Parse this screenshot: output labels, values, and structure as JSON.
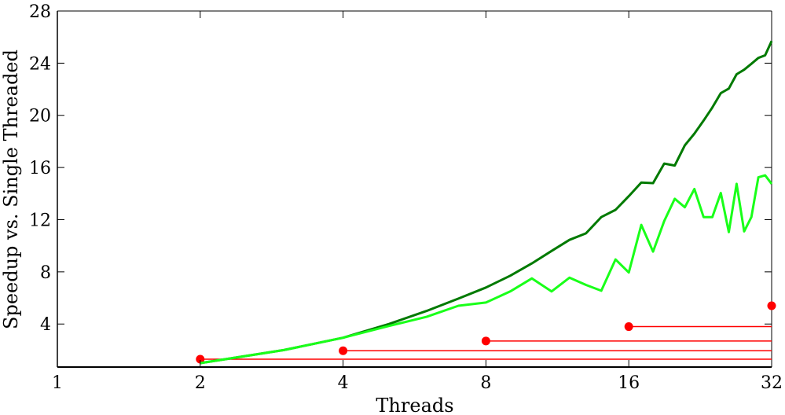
{
  "chart_data": {
    "type": "line",
    "xlabel": "Threads",
    "ylabel": "Speedup vs. Single Threaded",
    "x_scale": "log2",
    "xlim": [
      1,
      32
    ],
    "ylim": [
      0.7,
      28
    ],
    "x_ticks": [
      1,
      2,
      4,
      8,
      16,
      32
    ],
    "x_tick_labels": [
      "1",
      "2",
      "4",
      "8",
      "16",
      "32"
    ],
    "y_ticks": [
      4,
      8,
      12,
      16,
      20,
      24,
      28
    ],
    "y_tick_labels": [
      "4",
      "8",
      "12",
      "16",
      "20",
      "24",
      "28"
    ],
    "grid": false,
    "series": [
      {
        "color": "#007a00",
        "style": "line",
        "x": [
          2,
          3,
          4,
          5,
          6,
          7,
          8,
          9,
          10,
          11,
          12,
          13,
          14,
          15,
          16,
          17,
          18,
          19,
          20,
          21,
          22,
          23,
          24,
          25,
          26,
          27,
          28,
          29,
          30,
          31,
          32
        ],
        "y": [
          1.0,
          2.0,
          2.95,
          4.0,
          5.0,
          5.95,
          6.8,
          7.7,
          8.65,
          9.6,
          10.45,
          10.95,
          12.2,
          12.75,
          13.8,
          14.85,
          14.8,
          16.3,
          16.15,
          17.7,
          18.6,
          19.6,
          20.6,
          21.7,
          22.05,
          23.15,
          23.5,
          23.95,
          24.4,
          24.6,
          25.7
        ]
      },
      {
        "color": "#19ff19",
        "style": "line",
        "x": [
          2,
          3,
          4,
          5,
          6,
          7,
          8,
          9,
          10,
          11,
          12,
          13,
          14,
          15,
          16,
          17,
          18,
          19,
          20,
          21,
          22,
          23,
          24,
          25,
          26,
          27,
          28,
          29,
          30,
          31,
          32
        ],
        "y": [
          1.0,
          2.0,
          2.95,
          3.85,
          4.55,
          5.4,
          5.65,
          6.5,
          7.5,
          6.5,
          7.55,
          7.0,
          6.55,
          8.95,
          7.95,
          11.6,
          9.55,
          11.9,
          13.6,
          12.95,
          14.35,
          12.2,
          12.2,
          14.05,
          11.05,
          14.75,
          11.1,
          12.2,
          15.25,
          15.4,
          14.75
        ]
      },
      {
        "color": "#ff0000",
        "style": "marker+hline",
        "points": [
          {
            "x": 2,
            "y": 1.3
          },
          {
            "x": 4,
            "y": 1.95
          },
          {
            "x": 8,
            "y": 2.7
          },
          {
            "x": 16,
            "y": 3.8
          },
          {
            "x": 32,
            "y": 5.4
          }
        ]
      }
    ]
  }
}
